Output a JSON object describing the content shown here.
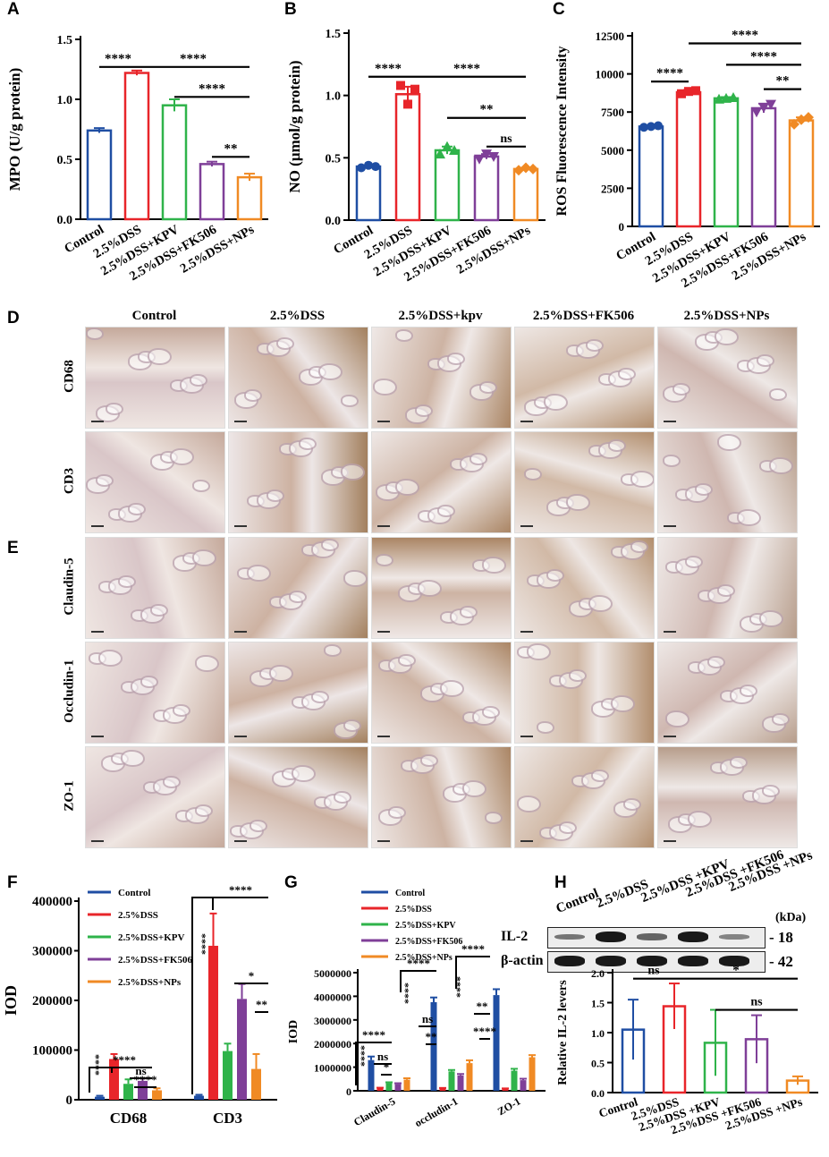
{
  "panel_letters": [
    "A",
    "B",
    "C",
    "D",
    "E",
    "F",
    "G",
    "H"
  ],
  "groups": [
    "Control",
    "2.5%DSS",
    "2.5%DSS+KPV",
    "2.5%DSS+FK506",
    "2.5%DSS+NPs"
  ],
  "colors": {
    "control": "#1f4ea3",
    "dss": "#e8252a",
    "kpv": "#2fb34a",
    "fk506": "#7f3f98",
    "nps": "#f08a24"
  },
  "histology": {
    "columns": [
      "Control",
      "2.5%DSS",
      "2.5%DSS+kpv",
      "2.5%DSS+FK506",
      "2.5%DSS+NPs"
    ],
    "rows_D": [
      "CD68",
      "CD3"
    ],
    "rows_E": [
      "Claudin-5",
      "Occludin-1",
      "ZO-1"
    ]
  },
  "western_blot": {
    "lanes": [
      "Control",
      "2.5%DSS",
      "2.5%DSS +KPV",
      "2.5%DSS +FK506",
      "2.5%DSS +NPs"
    ],
    "unit": "(kDa)",
    "rows": [
      {
        "label": "IL-2",
        "kda": "- 18"
      },
      {
        "label": "β-actin",
        "kda": "- 42"
      }
    ]
  },
  "chart_data": [
    {
      "panel": "A",
      "type": "bar",
      "ylabel": "MPO (U/g protein)",
      "ylim": [
        0,
        1.5
      ],
      "yticks": [
        "0.0",
        "0.5",
        "1.0",
        "1.5"
      ],
      "categories": [
        "Control",
        "2.5%DSS",
        "2.5%DSS+KPV",
        "2.5%DSS+FK506",
        "2.5%DSS+NPs"
      ],
      "values": [
        0.74,
        1.22,
        0.95,
        0.46,
        0.35
      ],
      "errors": [
        0.02,
        0.02,
        0.05,
        0.02,
        0.03
      ],
      "sig": [
        {
          "from": 0,
          "to": 1,
          "label": "****",
          "y": 1.27
        },
        {
          "from": 1,
          "to": 4,
          "label": "****",
          "y": 1.27
        },
        {
          "from": 2,
          "to": 4,
          "label": "****",
          "y": 1.02
        },
        {
          "from": 3,
          "to": 4,
          "label": "**",
          "y": 0.52
        }
      ]
    },
    {
      "panel": "B",
      "type": "bar",
      "ylabel": "NO (μmol/g protein)",
      "ylim": [
        0,
        1.5
      ],
      "yticks": [
        "0.0",
        "0.5",
        "1.0",
        "1.5"
      ],
      "categories": [
        "Control",
        "2.5%DSS",
        "2.5%DSS+KPV",
        "2.5%DSS+FK506",
        "2.5%DSS+NPs"
      ],
      "values": [
        0.43,
        1.01,
        0.56,
        0.51,
        0.41
      ],
      "errors": [
        0.01,
        0.06,
        0.03,
        0.02,
        0.01
      ],
      "points": [
        [
          0.42,
          0.44,
          0.43
        ],
        [
          1.08,
          0.93,
          1.05
        ],
        [
          0.53,
          0.59,
          0.56
        ],
        [
          0.49,
          0.53,
          0.51
        ],
        [
          0.4,
          0.42,
          0.41
        ]
      ],
      "markers": [
        "circle",
        "square",
        "triangle",
        "triangle-down",
        "diamond"
      ],
      "sig": [
        {
          "from": 0,
          "to": 1,
          "label": "****",
          "y": 1.15
        },
        {
          "from": 1,
          "to": 4,
          "label": "****",
          "y": 1.15
        },
        {
          "from": 2,
          "to": 4,
          "label": "**",
          "y": 0.82
        },
        {
          "from": 3,
          "to": 4,
          "label": "ns",
          "y": 0.59
        }
      ]
    },
    {
      "panel": "C",
      "type": "bar",
      "ylabel": "ROS Fluorescence Intensity",
      "ylim": [
        0,
        12500
      ],
      "yticks": [
        "0",
        "2500",
        "5000",
        "7500",
        "10000",
        "12500"
      ],
      "categories": [
        "Control",
        "2.5%DSS",
        "2.5%DSS+KPV",
        "2.5%DSS+FK506",
        "2.5%DSS+NPs"
      ],
      "values": [
        6550,
        8800,
        8400,
        7750,
        6950
      ],
      "errors": [
        50,
        150,
        80,
        300,
        200
      ],
      "points": [
        [
          6500,
          6550,
          6600
        ],
        [
          8700,
          8850,
          8900
        ],
        [
          8350,
          8400,
          8450
        ],
        [
          7500,
          7800,
          8000
        ],
        [
          6700,
          7000,
          7150
        ]
      ],
      "markers": [
        "circle",
        "square",
        "triangle",
        "triangle-down",
        "diamond"
      ],
      "sig": [
        {
          "from": 0,
          "to": 1,
          "label": "****",
          "y": 9500
        },
        {
          "from": 1,
          "to": 4,
          "label": "****",
          "y": 12000
        },
        {
          "from": 2,
          "to": 4,
          "label": "****",
          "y": 10600
        },
        {
          "from": 3,
          "to": 4,
          "label": "**",
          "y": 9000
        }
      ]
    },
    {
      "panel": "F",
      "type": "bar",
      "ylabel": "IOD",
      "ylim": [
        0,
        400000
      ],
      "yticks": [
        "0",
        "100000",
        "200000",
        "300000",
        "400000"
      ],
      "categories": [
        "CD68",
        "CD3"
      ],
      "legend": [
        "Control",
        "2.5%DSS",
        "2.5%DSS+KPV",
        "2.5%DSS+FK506",
        "2.5%DSS+NPs"
      ],
      "series": [
        {
          "name": "Control",
          "values": [
            6000,
            8000
          ],
          "errors": [
            2000,
            2000
          ]
        },
        {
          "name": "2.5%DSS",
          "values": [
            82000,
            310000
          ],
          "errors": [
            10000,
            65000
          ]
        },
        {
          "name": "2.5%DSS+KPV",
          "values": [
            32000,
            98000
          ],
          "errors": [
            9000,
            15000
          ]
        },
        {
          "name": "2.5%DSS+FK506",
          "values": [
            38000,
            203000
          ],
          "errors": [
            5000,
            30000
          ]
        },
        {
          "name": "2.5%DSS+NPs",
          "values": [
            19000,
            62000
          ],
          "errors": [
            4000,
            30000
          ]
        }
      ],
      "sig": [
        {
          "label": "****"
        },
        {
          "label": "****"
        },
        {
          "label": "ns"
        },
        {
          "label": "****"
        },
        {
          "label": "****"
        },
        {
          "label": "****"
        },
        {
          "label": "*"
        },
        {
          "label": "**"
        }
      ]
    },
    {
      "panel": "G",
      "type": "bar",
      "ylabel": "IOD",
      "ylim": [
        0,
        5000000
      ],
      "yticks": [
        "0",
        "1000000",
        "2000000",
        "3000000",
        "4000000",
        "5000000"
      ],
      "categories": [
        "Claudin-5",
        "occludin-1",
        "ZO-1"
      ],
      "legend": [
        "Control",
        "2.5%DSS",
        "2.5%DSS+KPV",
        "2.5%DSS+FK506",
        "2.5%DSS+NPs"
      ],
      "series": [
        {
          "name": "Control",
          "values": [
            1300000,
            3750000,
            4050000
          ],
          "errors": [
            150000,
            200000,
            250000
          ]
        },
        {
          "name": "2.5%DSS",
          "values": [
            110000,
            100000,
            80000
          ],
          "errors": [
            20000,
            20000,
            20000
          ]
        },
        {
          "name": "2.5%DSS+KPV",
          "values": [
            320000,
            820000,
            850000
          ],
          "errors": [
            40000,
            60000,
            80000
          ]
        },
        {
          "name": "2.5%DSS+FK506",
          "values": [
            280000,
            650000,
            450000
          ],
          "errors": [
            40000,
            60000,
            60000
          ]
        },
        {
          "name": "2.5%DSS+NPs",
          "values": [
            470000,
            1170000,
            1420000
          ],
          "errors": [
            60000,
            120000,
            90000
          ]
        }
      ],
      "sig": [
        {
          "label": "****"
        },
        {
          "label": "****"
        },
        {
          "label": "ns"
        },
        {
          "label": "*"
        },
        {
          "label": "****"
        },
        {
          "label": "****"
        },
        {
          "label": "ns"
        },
        {
          "label": "**"
        },
        {
          "label": "****"
        },
        {
          "label": "****"
        },
        {
          "label": "**"
        },
        {
          "label": "****"
        }
      ]
    },
    {
      "panel": "H",
      "type": "bar",
      "ylabel": "Relative IL-2 levers",
      "ylim": [
        0,
        2.0
      ],
      "yticks": [
        "0.0",
        "0.5",
        "1.0",
        "1.5",
        "2.0"
      ],
      "categories": [
        "Control",
        "2.5%DSS",
        "2.5%DSS +KPV",
        "2.5%DSS +FK506",
        "2.5%DSS +NPs"
      ],
      "values": [
        1.05,
        1.44,
        0.83,
        0.89,
        0.2
      ],
      "errors": [
        0.5,
        0.38,
        0.55,
        0.4,
        0.07
      ],
      "sig": [
        {
          "from": 0,
          "to": 1,
          "label": "ns",
          "y": 1.9
        },
        {
          "from": 1,
          "to": 4,
          "label": "*",
          "y": 1.9
        },
        {
          "from": 2,
          "to": 4,
          "label": "ns",
          "y": 1.38
        }
      ]
    }
  ]
}
